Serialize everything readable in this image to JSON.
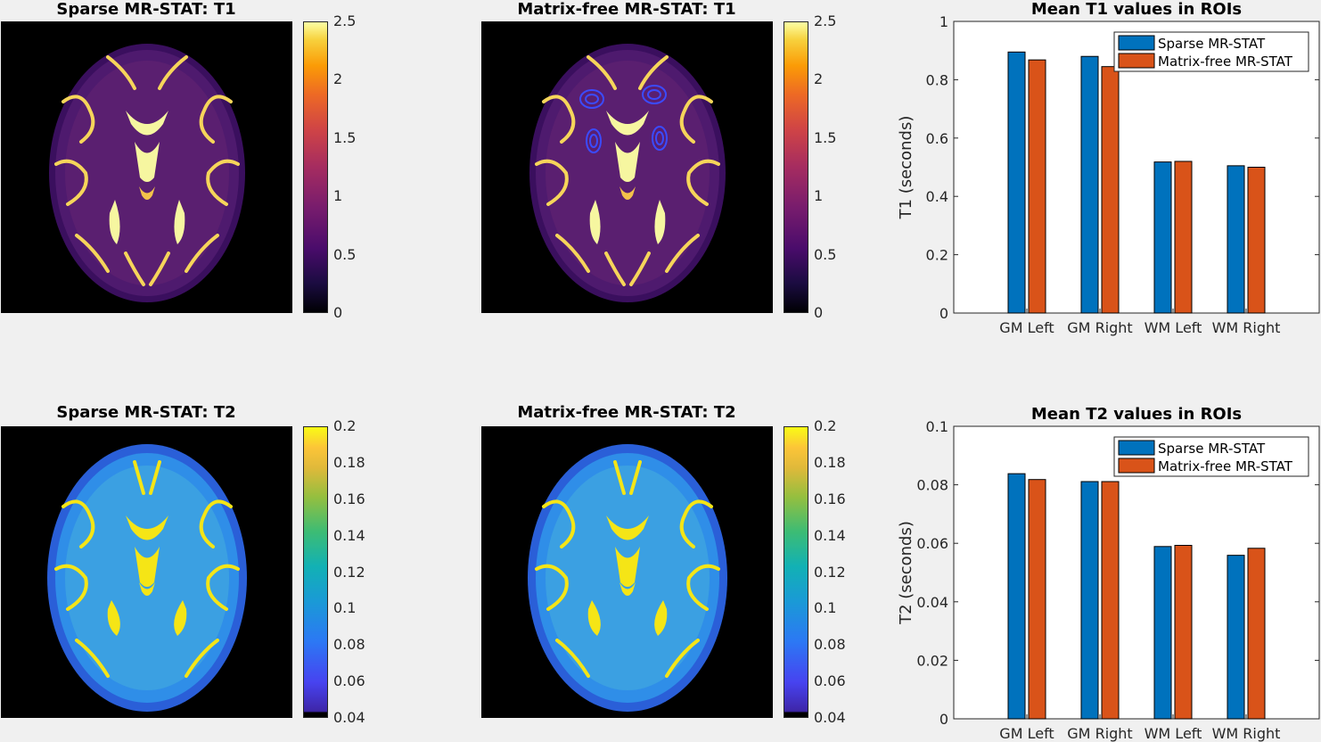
{
  "figure": {
    "panels": [
      {
        "id": "t1-sparse",
        "title": "Sparse MR-STAT: T1",
        "colormap": "inferno",
        "colorbar_ticks": [
          "2.5",
          "2",
          "1.5",
          "1",
          "0.5",
          "0"
        ],
        "roi_markers": false
      },
      {
        "id": "t1-matrix",
        "title": "Matrix-free MR-STAT: T1",
        "colormap": "inferno",
        "colorbar_ticks": [
          "2.5",
          "2",
          "1.5",
          "1",
          "0.5",
          "0"
        ],
        "roi_markers": true
      },
      {
        "id": "t2-sparse",
        "title": "Sparse MR-STAT: T2",
        "colormap": "parula",
        "colorbar_ticks": [
          "0.2",
          "0.18",
          "0.16",
          "0.14",
          "0.12",
          "0.1",
          "0.08",
          "0.06",
          "0.04"
        ],
        "roi_markers": false
      },
      {
        "id": "t2-matrix",
        "title": "Matrix-free MR-STAT: T2",
        "colormap": "parula",
        "colorbar_ticks": [
          "0.2",
          "0.18",
          "0.16",
          "0.14",
          "0.12",
          "0.1",
          "0.08",
          "0.06",
          "0.04"
        ],
        "roi_markers": false
      }
    ]
  },
  "chart_data": [
    {
      "type": "bar",
      "title": "Mean T1 values in ROIs",
      "xlabel": "",
      "ylabel": "T1 (seconds)",
      "categories": [
        "GM Left",
        "GM Right",
        "WM Left",
        "WM Right"
      ],
      "ylim": [
        0,
        1
      ],
      "yticks": [
        "0",
        "0.2",
        "0.4",
        "0.6",
        "0.8",
        "1"
      ],
      "grid": false,
      "legend_position": "top-right",
      "series": [
        {
          "name": "Sparse MR-STAT",
          "color": "#0072BD",
          "values": [
            0.895,
            0.88,
            0.518,
            0.505
          ]
        },
        {
          "name": "Matrix-free MR-STAT",
          "color": "#D95319",
          "values": [
            0.868,
            0.845,
            0.52,
            0.5
          ]
        }
      ]
    },
    {
      "type": "bar",
      "title": "Mean T2 values in ROIs",
      "xlabel": "",
      "ylabel": "T2 (seconds)",
      "categories": [
        "GM Left",
        "GM Right",
        "WM Left",
        "WM Right"
      ],
      "ylim": [
        0,
        0.1
      ],
      "yticks": [
        "0",
        "0.02",
        "0.04",
        "0.06",
        "0.08",
        "0.1"
      ],
      "grid": false,
      "legend_position": "top-right",
      "series": [
        {
          "name": "Sparse MR-STAT",
          "color": "#0072BD",
          "values": [
            0.0838,
            0.0811,
            0.0589,
            0.0559
          ]
        },
        {
          "name": "Matrix-free MR-STAT",
          "color": "#D95319",
          "values": [
            0.0818,
            0.0811,
            0.0593,
            0.0583
          ]
        }
      ]
    }
  ]
}
